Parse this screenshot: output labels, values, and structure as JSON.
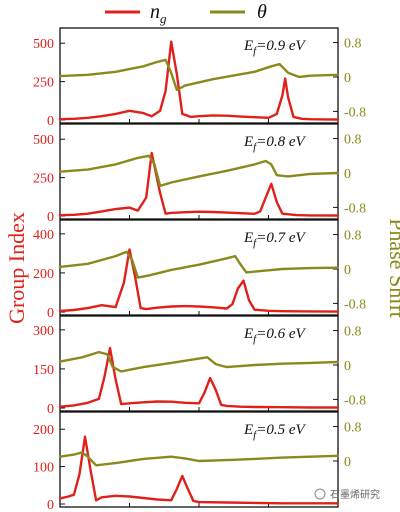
{
  "colors": {
    "group_index": "#e0201b",
    "phase": "#8a8a1c",
    "frame": "#111111"
  },
  "legend": {
    "ng_symbol": "n",
    "ng_subscript": "g",
    "theta_symbol": "θ"
  },
  "watermark": "石墨烯研究",
  "chart_data": {
    "type": "line",
    "ylabel_left": "Group Index",
    "ylabel_right": "Phase Shift",
    "xlabel": "",
    "panels": [
      {
        "label_prefix": "E",
        "label_sub": "f",
        "label_value": "=0.9 eV",
        "left_ticks": [
          "0",
          "250",
          "500"
        ],
        "ylim_left": [
          0,
          560
        ],
        "right_ticks": [
          "0.8",
          "0",
          "-0.8"
        ],
        "ylim_right": [
          -1.0,
          1.0
        ],
        "series": [
          {
            "name": "ng",
            "x": [
              0,
              0.05,
              0.1,
              0.15,
              0.2,
              0.25,
              0.3,
              0.33,
              0.36,
              0.38,
              0.4,
              0.42,
              0.44,
              0.47,
              0.5,
              0.55,
              0.6,
              0.65,
              0.7,
              0.75,
              0.78,
              0.8,
              0.81,
              0.82,
              0.84,
              0.87,
              0.9,
              0.95,
              1.0
            ],
            "y": [
              5,
              8,
              14,
              25,
              40,
              60,
              45,
              25,
              60,
              190,
              510,
              300,
              40,
              20,
              25,
              30,
              28,
              22,
              18,
              14,
              40,
              160,
              270,
              150,
              20,
              8,
              5,
              4,
              3
            ]
          },
          {
            "name": "θ",
            "x": [
              0,
              0.1,
              0.2,
              0.3,
              0.35,
              0.38,
              0.4,
              0.42,
              0.45,
              0.55,
              0.7,
              0.76,
              0.79,
              0.82,
              0.86,
              0.9,
              1.0
            ],
            "y": [
              0.02,
              0.05,
              0.12,
              0.25,
              0.35,
              0.4,
              0.1,
              -0.3,
              -0.2,
              -0.05,
              0.12,
              0.25,
              0.3,
              0.1,
              0.0,
              0.03,
              0.05
            ]
          }
        ]
      },
      {
        "label_prefix": "E",
        "label_sub": "f",
        "label_value": "=0.8 eV",
        "left_ticks": [
          "0",
          "250",
          "500"
        ],
        "ylim_left": [
          0,
          560
        ],
        "right_ticks": [
          "0.8",
          "0",
          "-0.8"
        ],
        "ylim_right": [
          -1.0,
          1.0
        ],
        "series": [
          {
            "name": "ng",
            "x": [
              0,
              0.05,
              0.1,
              0.15,
              0.2,
              0.25,
              0.28,
              0.31,
              0.33,
              0.36,
              0.38,
              0.4,
              0.45,
              0.5,
              0.55,
              0.6,
              0.65,
              0.7,
              0.72,
              0.74,
              0.76,
              0.78,
              0.8,
              0.85,
              0.9,
              1.0
            ],
            "y": [
              5,
              8,
              15,
              30,
              45,
              55,
              35,
              120,
              410,
              150,
              15,
              20,
              25,
              28,
              26,
              22,
              18,
              14,
              30,
              120,
              210,
              90,
              15,
              6,
              4,
              3
            ]
          },
          {
            "name": "θ",
            "x": [
              0,
              0.1,
              0.2,
              0.28,
              0.32,
              0.34,
              0.36,
              0.4,
              0.5,
              0.6,
              0.7,
              0.74,
              0.76,
              0.78,
              0.82,
              0.9,
              1.0
            ],
            "y": [
              0.03,
              0.08,
              0.2,
              0.35,
              0.4,
              0.2,
              -0.3,
              -0.22,
              -0.08,
              0.05,
              0.2,
              0.28,
              0.2,
              -0.05,
              -0.08,
              -0.02,
              0.0
            ]
          }
        ]
      },
      {
        "label_prefix": "E",
        "label_sub": "f",
        "label_value": "=0.7 eV",
        "left_ticks": [
          "0",
          "200",
          "400"
        ],
        "ylim_left": [
          0,
          440
        ],
        "right_ticks": [
          "0.8",
          "0",
          "-0.8"
        ],
        "ylim_right": [
          -1.0,
          1.0
        ],
        "series": [
          {
            "name": "ng",
            "x": [
              0,
              0.05,
              0.1,
              0.15,
              0.2,
              0.23,
              0.25,
              0.27,
              0.29,
              0.31,
              0.35,
              0.4,
              0.45,
              0.5,
              0.55,
              0.6,
              0.62,
              0.64,
              0.66,
              0.68,
              0.7,
              0.75,
              0.8,
              0.9,
              1.0
            ],
            "y": [
              5,
              10,
              20,
              35,
              25,
              150,
              320,
              180,
              20,
              15,
              22,
              28,
              30,
              28,
              24,
              18,
              40,
              120,
              160,
              60,
              12,
              6,
              4,
              3,
              2
            ]
          },
          {
            "name": "θ",
            "x": [
              0,
              0.1,
              0.2,
              0.24,
              0.26,
              0.28,
              0.32,
              0.4,
              0.5,
              0.6,
              0.63,
              0.65,
              0.67,
              0.72,
              0.8,
              0.9,
              1.0
            ],
            "y": [
              0.05,
              0.12,
              0.3,
              0.4,
              0.2,
              -0.2,
              -0.15,
              -0.02,
              0.1,
              0.25,
              0.3,
              0.1,
              -0.08,
              -0.05,
              0.0,
              0.02,
              0.03
            ]
          }
        ]
      },
      {
        "label_prefix": "E",
        "label_sub": "f",
        "label_value": "=0.6 eV",
        "left_ticks": [
          "0",
          "150",
          "300"
        ],
        "ylim_left": [
          0,
          330
        ],
        "right_ticks": [
          "0.8",
          "0",
          "-0.8"
        ],
        "ylim_right": [
          -1.0,
          1.0
        ],
        "series": [
          {
            "name": "ng",
            "x": [
              0,
              0.05,
              0.1,
              0.14,
              0.16,
              0.18,
              0.2,
              0.22,
              0.25,
              0.3,
              0.35,
              0.4,
              0.45,
              0.5,
              0.52,
              0.54,
              0.56,
              0.58,
              0.6,
              0.65,
              0.7,
              0.8,
              0.9,
              1.0
            ],
            "y": [
              5,
              10,
              20,
              35,
              120,
              230,
              110,
              15,
              18,
              22,
              25,
              24,
              20,
              18,
              60,
              115,
              70,
              12,
              8,
              5,
              4,
              3,
              2,
              2
            ]
          },
          {
            "name": "θ",
            "x": [
              0,
              0.08,
              0.14,
              0.17,
              0.19,
              0.22,
              0.3,
              0.4,
              0.5,
              0.53,
              0.56,
              0.6,
              0.7,
              0.8,
              0.9,
              1.0
            ],
            "y": [
              0.08,
              0.18,
              0.3,
              0.25,
              -0.05,
              -0.15,
              -0.05,
              0.05,
              0.15,
              0.18,
              0.02,
              -0.05,
              0.0,
              0.03,
              0.05,
              0.07
            ]
          }
        ]
      },
      {
        "label_prefix": "E",
        "label_sub": "f",
        "label_value": "=0.5 eV",
        "left_ticks": [
          "0",
          "100",
          "200"
        ],
        "ylim_left": [
          0,
          230
        ],
        "right_ticks": [
          "0.8",
          "0"
        ],
        "ylim_right": [
          -1.0,
          1.0
        ],
        "series": [
          {
            "name": "ng",
            "x": [
              0,
              0.03,
              0.05,
              0.07,
              0.09,
              0.11,
              0.13,
              0.15,
              0.2,
              0.25,
              0.3,
              0.35,
              0.4,
              0.42,
              0.44,
              0.46,
              0.48,
              0.5,
              0.6,
              0.7,
              0.8,
              0.9,
              1.0
            ],
            "y": [
              15,
              20,
              25,
              80,
              180,
              90,
              10,
              18,
              22,
              20,
              16,
              12,
              10,
              40,
              75,
              40,
              8,
              5,
              4,
              3,
              2,
              2,
              2
            ]
          },
          {
            "name": "θ",
            "x": [
              0,
              0.05,
              0.08,
              0.1,
              0.13,
              0.2,
              0.3,
              0.4,
              0.45,
              0.5,
              0.6,
              0.7,
              0.8,
              0.9,
              1.0
            ],
            "y": [
              0.1,
              0.15,
              0.2,
              0.1,
              -0.1,
              -0.05,
              0.05,
              0.1,
              0.06,
              0.0,
              0.02,
              0.05,
              0.08,
              0.1,
              0.12
            ]
          }
        ]
      }
    ]
  }
}
